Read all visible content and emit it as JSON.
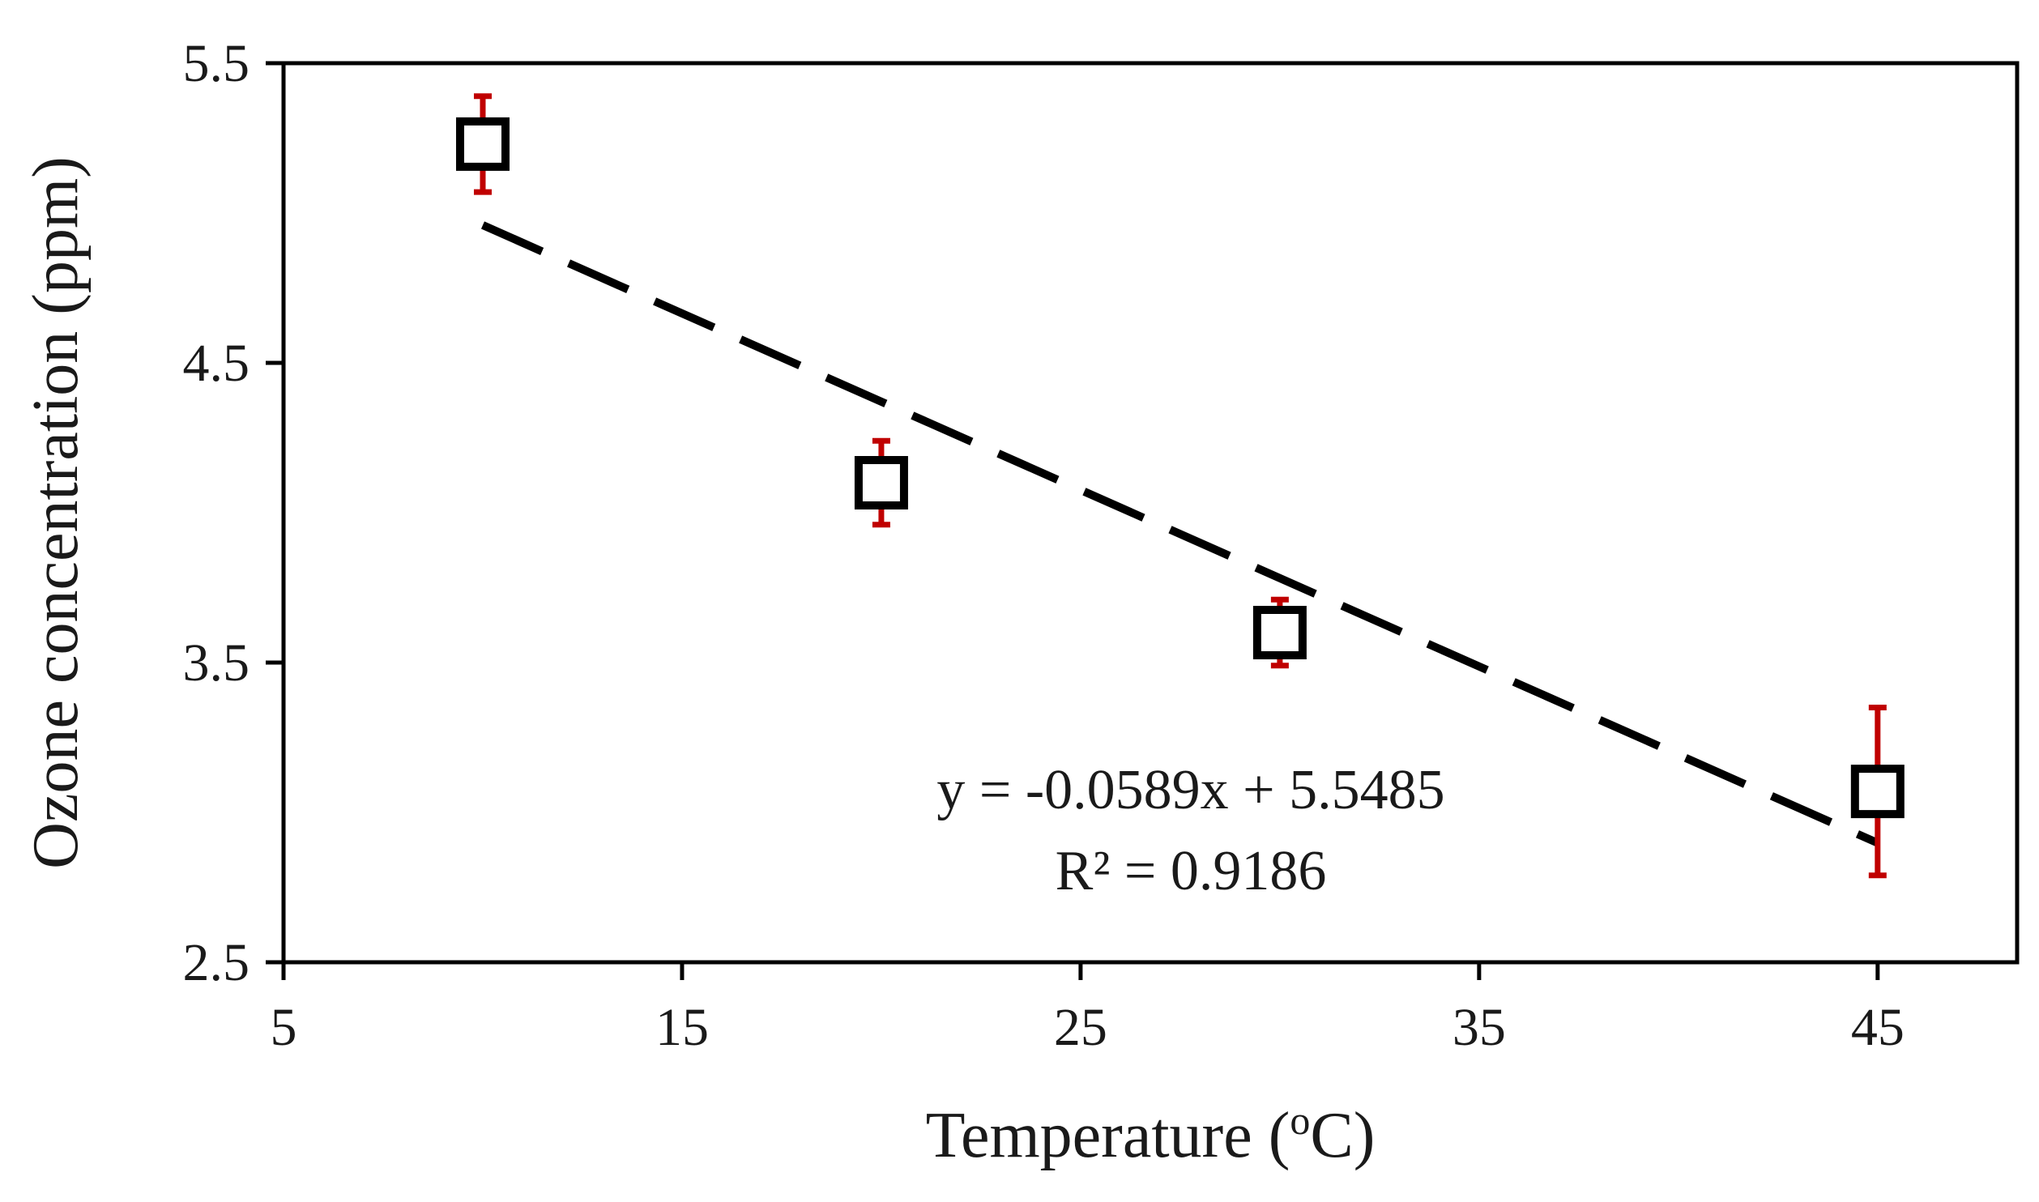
{
  "chart_data": {
    "type": "scatter",
    "xlabel": "Temperature (",
    "xlabel_superscript": "o",
    "xlabel_unit": "C)",
    "ylabel": "Ozone concentration (ppm)",
    "xlim": [
      5,
      48.5
    ],
    "ylim": [
      2.5,
      5.5
    ],
    "xticks": [
      "5",
      "15",
      "25",
      "35",
      "45"
    ],
    "yticks": [
      "2.5",
      "3.5",
      "4.5",
      "5.5"
    ],
    "grid": false,
    "series": [
      {
        "marker": "open-square",
        "color": "#000000",
        "error_bar_color": "#c00000",
        "points": [
          {
            "x": 10,
            "y": 5.23,
            "err_low": 0.16,
            "err_high": 0.16
          },
          {
            "x": 20,
            "y": 4.1,
            "err_low": 0.14,
            "err_high": 0.14
          },
          {
            "x": 30,
            "y": 3.6,
            "err_low": 0.11,
            "err_high": 0.11
          },
          {
            "x": 45,
            "y": 3.07,
            "err_low": 0.28,
            "err_high": 0.28
          }
        ]
      }
    ],
    "trendline": {
      "style": "dashed",
      "color": "#000000",
      "slope": -0.0589,
      "intercept": 5.5485,
      "x_range": [
        10,
        45
      ]
    },
    "annotations": {
      "equation": "y = -0.0589x + 5.5485",
      "r_squared": "R² = 0.9186"
    }
  }
}
